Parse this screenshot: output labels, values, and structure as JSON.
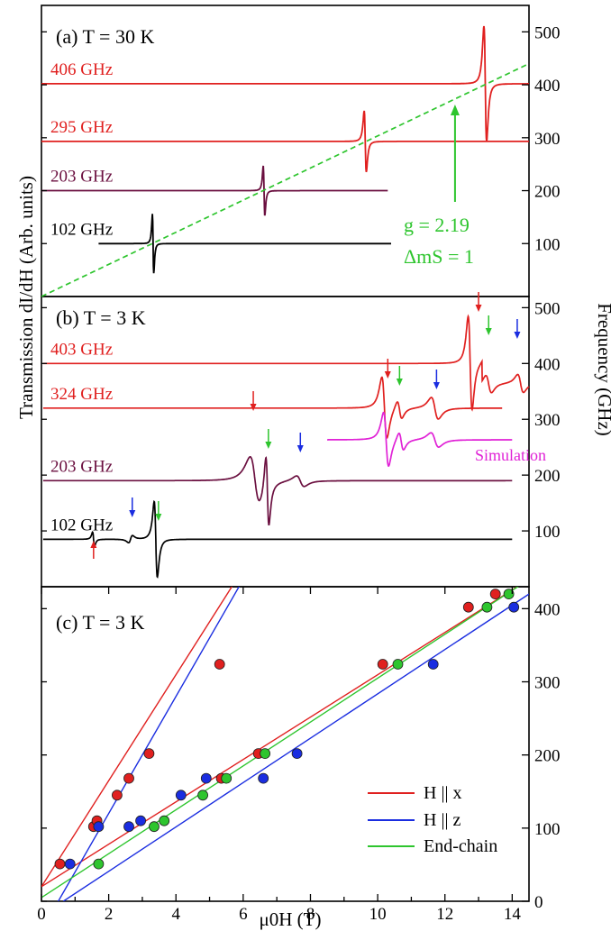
{
  "figure": {
    "left_axis_label": "Transmission dI/dH (Arb. units)",
    "right_axis_label": "Frequency (GHz)",
    "bottom_axis_label": "μ0H (T)"
  },
  "chart_data": [
    {
      "panel": "a",
      "type": "line",
      "title": "(a) T = 30 K",
      "x_range": [
        0,
        14.5
      ],
      "y_right_range": [
        0,
        550
      ],
      "y_right_ticks": [
        "100",
        "200",
        "300",
        "400",
        "500"
      ],
      "spectra": [
        {
          "label": "102 GHz",
          "color": "#000000",
          "baseline_GHz": 100,
          "resonance_T": 3.32,
          "x_end_T": 10.4
        },
        {
          "label": "203 GHz",
          "color": "#6b1040",
          "baseline_GHz": 200,
          "resonance_T": 6.62,
          "x_end_T": 10.3
        },
        {
          "label": "295 GHz",
          "color": "#e0201f",
          "baseline_GHz": 293,
          "resonance_T": 9.63,
          "x_end_T": 14.5
        },
        {
          "label": "406 GHz",
          "color": "#e0201f",
          "baseline_GHz": 402,
          "resonance_T": 13.2,
          "x_end_T": 14.5
        }
      ],
      "fit_line": {
        "color": "#2ec52e",
        "style": "dashed",
        "x": [
          0,
          14.5
        ],
        "y": [
          0,
          440
        ]
      },
      "annotation": {
        "g_text": "g = 2.19",
        "dm_text": "ΔmS = 1",
        "color": "#2ec52e",
        "arrow_x_T": 12.3
      }
    },
    {
      "panel": "b",
      "type": "line",
      "title": "(b) T = 3 K",
      "x_range": [
        0,
        14.5
      ],
      "y_right_range": [
        0,
        520
      ],
      "y_right_ticks": [
        "100",
        "200",
        "300",
        "400",
        "500"
      ],
      "spectra": [
        {
          "label": "102 GHz",
          "color": "#000000",
          "baseline_GHz": 85,
          "x_end_T": 14.0
        },
        {
          "label": "203 GHz",
          "color": "#6b1040",
          "baseline_GHz": 190,
          "x_end_T": 14.0
        },
        {
          "label": "324 GHz",
          "color": "#e0201f",
          "baseline_GHz": 320,
          "x_end_T": 13.7
        },
        {
          "label": "403 GHz",
          "color": "#e0201f",
          "baseline_GHz": 400,
          "x_end_T": 14.5
        }
      ],
      "simulation": {
        "label": "Simulation",
        "color": "#e022d6"
      },
      "arrows": [
        {
          "x_T": 1.55,
          "color": "#e0201f",
          "dir": "up"
        },
        {
          "x_T": 2.7,
          "color": "#1a2de0",
          "dir": "down"
        },
        {
          "x_T": 3.48,
          "color": "#2ec52e",
          "dir": "down"
        },
        {
          "x_T": 6.3,
          "color": "#e0201f",
          "dir": "down"
        },
        {
          "x_T": 6.75,
          "color": "#2ec52e",
          "dir": "down"
        },
        {
          "x_T": 7.7,
          "color": "#1a2de0",
          "dir": "down"
        },
        {
          "x_T": 10.3,
          "color": "#e0201f",
          "dir": "down"
        },
        {
          "x_T": 10.65,
          "color": "#2ec52e",
          "dir": "down"
        },
        {
          "x_T": 11.75,
          "color": "#1a2de0",
          "dir": "down"
        },
        {
          "x_T": 13.0,
          "color": "#e0201f",
          "dir": "down"
        },
        {
          "x_T": 13.3,
          "color": "#2ec52e",
          "dir": "down"
        },
        {
          "x_T": 14.15,
          "color": "#1a2de0",
          "dir": "down"
        }
      ]
    },
    {
      "panel": "c",
      "type": "scatter",
      "title": "(c) T = 3 K",
      "xlabel": "μ0H (T)",
      "x_range": [
        0,
        14.5
      ],
      "y_range": [
        0,
        430
      ],
      "x_ticks": [
        "0",
        "2",
        "4",
        "6",
        "8",
        "10",
        "12",
        "14"
      ],
      "y_right_ticks": [
        "0",
        "100",
        "200",
        "300",
        "400"
      ],
      "series": [
        {
          "name": "H || x",
          "color": "#e0201f",
          "points": [
            [
              0.55,
              51
            ],
            [
              1.55,
              102
            ],
            [
              1.65,
              110
            ],
            [
              2.25,
              145
            ],
            [
              2.6,
              168
            ],
            [
              3.2,
              202
            ],
            [
              5.3,
              324
            ],
            [
              5.35,
              168
            ],
            [
              6.45,
              202
            ],
            [
              10.15,
              324
            ],
            [
              12.7,
              402
            ],
            [
              13.5,
              420
            ]
          ],
          "lines": [
            {
              "x": [
                0,
                5.8
              ],
              "y": [
                20,
                440
              ]
            },
            {
              "x": [
                0,
                14.5
              ],
              "y": [
                20,
                440
              ]
            }
          ]
        },
        {
          "name": "H || z",
          "color": "#1a2de0",
          "points": [
            [
              0.85,
              51
            ],
            [
              1.7,
              102
            ],
            [
              2.6,
              102
            ],
            [
              2.95,
              110
            ],
            [
              4.15,
              145
            ],
            [
              4.9,
              168
            ],
            [
              6.6,
              168
            ],
            [
              7.6,
              202
            ],
            [
              11.65,
              324
            ],
            [
              14.05,
              402
            ]
          ],
          "lines": [
            {
              "x": [
                0,
                6.0
              ],
              "y": [
                -40,
                440
              ]
            },
            {
              "x": [
                0.65,
                14.5
              ],
              "y": [
                0,
                420
              ]
            }
          ]
        },
        {
          "name": "End-chain",
          "color": "#2ec52e",
          "points": [
            [
              1.7,
              51
            ],
            [
              3.35,
              102
            ],
            [
              3.65,
              110
            ],
            [
              4.8,
              145
            ],
            [
              5.5,
              168
            ],
            [
              6.65,
              202
            ],
            [
              10.6,
              324
            ],
            [
              13.25,
              402
            ],
            [
              13.9,
              420
            ]
          ],
          "lines": [
            {
              "x": [
                0,
                14.5
              ],
              "y": [
                5,
                440
              ]
            }
          ]
        }
      ]
    }
  ]
}
